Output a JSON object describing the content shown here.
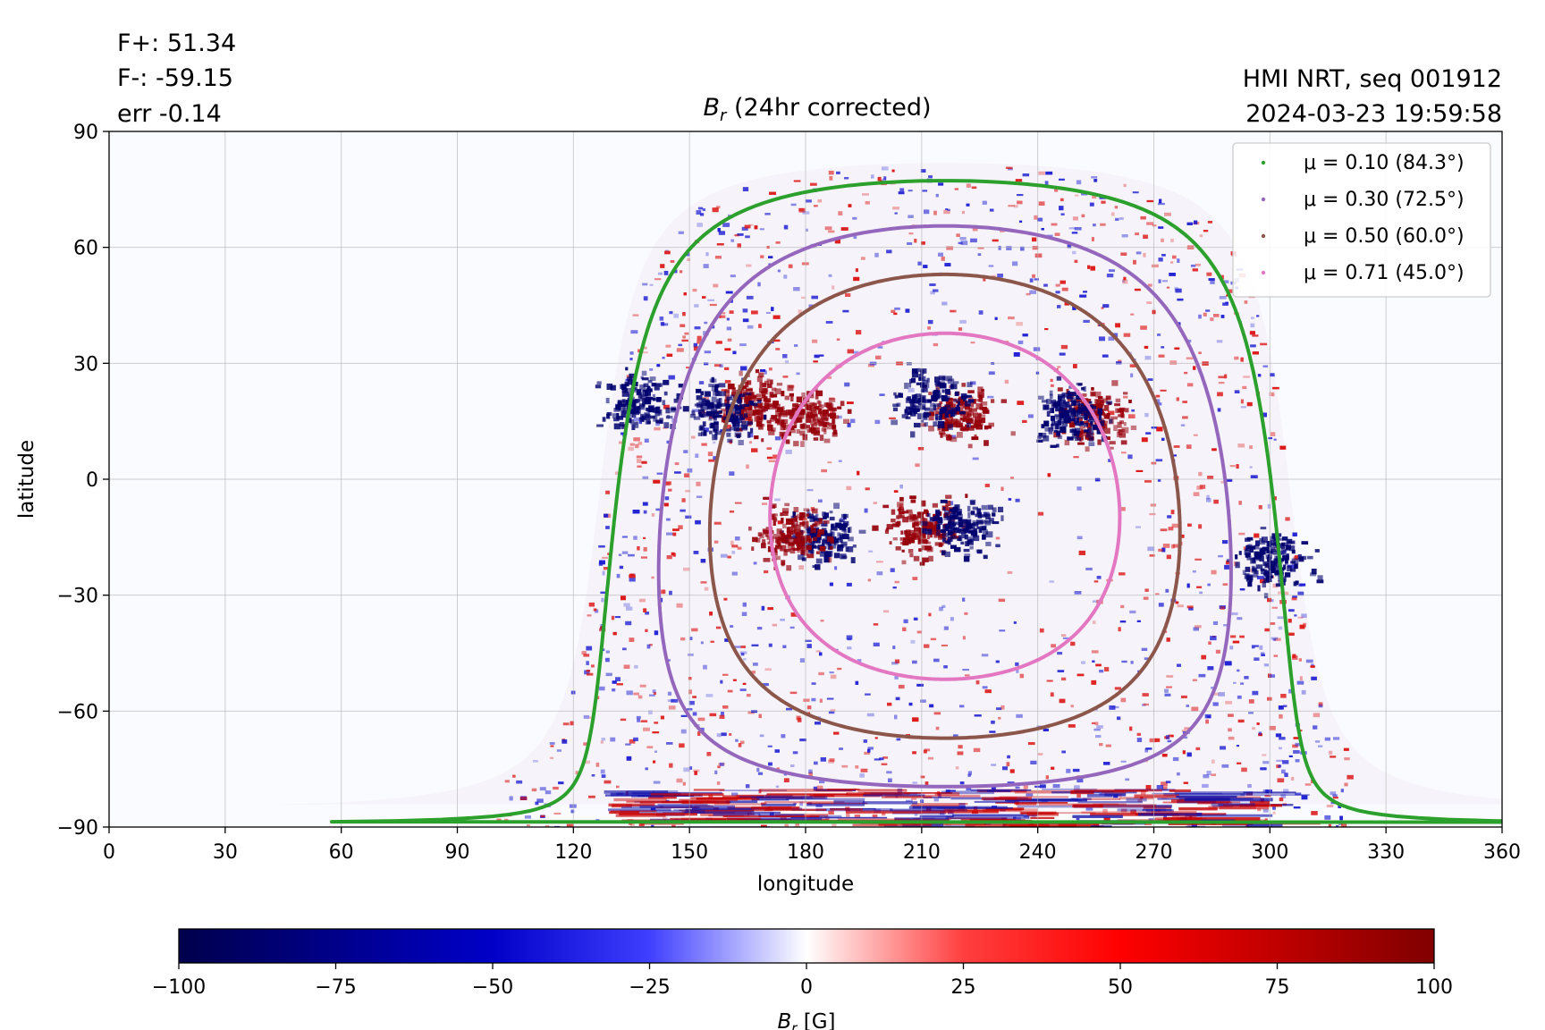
{
  "header": {
    "stats": [
      "F+: 51.34",
      "F-: -59.15",
      "err -0.14"
    ],
    "source_line1": "HMI NRT, seq 001912",
    "source_line2": "2024-03-23 19:59:58"
  },
  "chart_data": {
    "type": "heatmap",
    "title_symbol": "B",
    "title_sub": "r",
    "title_rest": " (24hr corrected)",
    "xlabel": "longitude",
    "ylabel": "latitude",
    "xlim": [
      0,
      360
    ],
    "ylim": [
      -90,
      90
    ],
    "x_ticks": [
      0,
      30,
      60,
      90,
      120,
      150,
      180,
      210,
      240,
      270,
      300,
      330,
      360
    ],
    "y_ticks": [
      90,
      60,
      30,
      0,
      -30,
      -60,
      -90
    ],
    "y_tick_labels": [
      "90",
      "60",
      "30",
      "0",
      "−30",
      "−60",
      "−90"
    ],
    "grid": true,
    "legend_position": "top-right",
    "disk_center_longitude": 216,
    "disk_center_latitude": -7,
    "series": [
      {
        "name": "μ = 0.10 (84.3°)",
        "mu": 0.1,
        "angle_deg": 84.3,
        "color": "#2ca02c"
      },
      {
        "name": "μ = 0.30 (72.5°)",
        "mu": 0.3,
        "angle_deg": 72.5,
        "color": "#9467bd"
      },
      {
        "name": "μ = 0.50 (60.0°)",
        "mu": 0.5,
        "angle_deg": 60.0,
        "color": "#8c564b"
      },
      {
        "name": "μ = 0.71 (45.0°)",
        "mu": 0.71,
        "angle_deg": 45.0,
        "color": "#e377c2"
      }
    ],
    "active_regions": [
      {
        "lon": 220,
        "lat": 18,
        "polarity": "positive"
      },
      {
        "lon": 212,
        "lat": 22,
        "polarity": "negative"
      },
      {
        "lon": 165,
        "lat": 20,
        "polarity": "positive"
      },
      {
        "lon": 180,
        "lat": 17,
        "polarity": "positive"
      },
      {
        "lon": 158,
        "lat": 18,
        "polarity": "negative"
      },
      {
        "lon": 137,
        "lat": 20,
        "polarity": "negative"
      },
      {
        "lon": 210,
        "lat": -12,
        "polarity": "positive"
      },
      {
        "lon": 220,
        "lat": -11,
        "polarity": "negative"
      },
      {
        "lon": 184,
        "lat": -14,
        "polarity": "negative"
      },
      {
        "lon": 176,
        "lat": -14,
        "polarity": "positive"
      },
      {
        "lon": 300,
        "lat": -20,
        "polarity": "negative"
      },
      {
        "lon": 254,
        "lat": 17,
        "polarity": "positive"
      },
      {
        "lon": 248,
        "lat": 17,
        "polarity": "negative"
      }
    ],
    "colorbar": {
      "min": -100,
      "max": 100,
      "ticks": [
        -100,
        -75,
        -50,
        -25,
        0,
        25,
        50,
        75,
        100
      ],
      "tick_labels": [
        "−100",
        "−75",
        "−50",
        "−25",
        "0",
        "25",
        "50",
        "75",
        "100"
      ],
      "label_symbol": "B",
      "label_sub": "r",
      "label_unit": " [G]",
      "colors": [
        "#00004c",
        "#0000ff",
        "#ffffff",
        "#ff0000",
        "#800000"
      ]
    }
  }
}
